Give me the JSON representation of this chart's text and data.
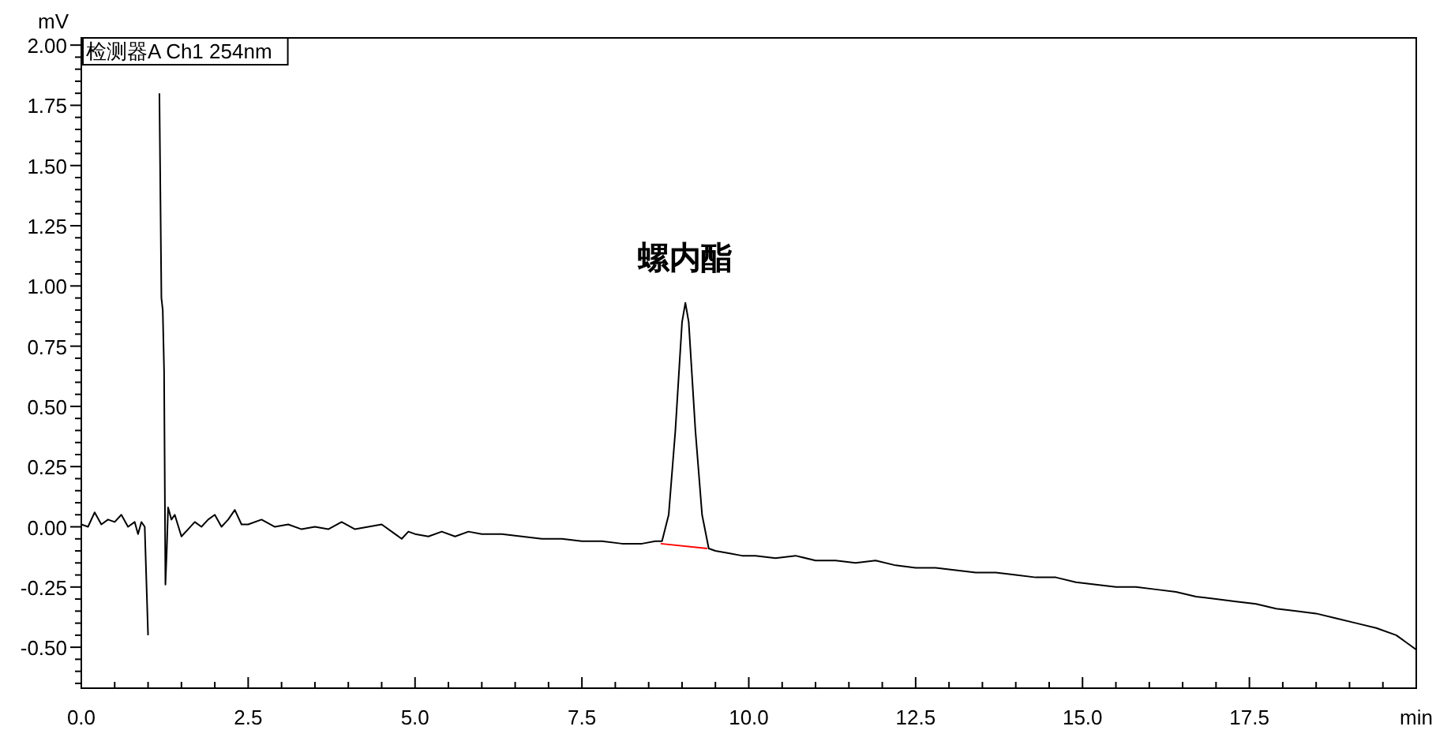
{
  "chart_data": {
    "type": "line",
    "xlabel": "min",
    "ylabel": "mV",
    "legend": "top left",
    "xlim": [
      0,
      20
    ],
    "ylim": [
      -0.67,
      2.03
    ],
    "xticks": [
      {
        "value": 0,
        "label": "0.0"
      },
      {
        "value": 2.5,
        "label": "2.5"
      },
      {
        "value": 5,
        "label": "5.0"
      },
      {
        "value": 7.5,
        "label": "7.5"
      },
      {
        "value": 10,
        "label": "10.0"
      },
      {
        "value": 12.5,
        "label": "12.5"
      },
      {
        "value": 15,
        "label": "15.0"
      },
      {
        "value": 17.5,
        "label": "17.5"
      }
    ],
    "yticks": [
      {
        "value": -0.5,
        "label": "-0.50"
      },
      {
        "value": -0.25,
        "label": "-0.25"
      },
      {
        "value": 0,
        "label": "0.00"
      },
      {
        "value": 0.25,
        "label": "0.25"
      },
      {
        "value": 0.5,
        "label": "0.50"
      },
      {
        "value": 0.75,
        "label": "0.75"
      },
      {
        "value": 1,
        "label": "1.00"
      },
      {
        "value": 1.25,
        "label": "1.25"
      },
      {
        "value": 1.5,
        "label": "1.50"
      },
      {
        "value": 1.75,
        "label": "1.75"
      },
      {
        "value": 2,
        "label": "2.00"
      }
    ],
    "annotations": [
      {
        "text": "螺内酯",
        "x": 9.05,
        "y": 0.93
      }
    ],
    "series": [
      {
        "name": "检测器A Ch1 254nm",
        "color": "#000000",
        "x": [
          0,
          0.1,
          0.2,
          0.3,
          0.4,
          0.5,
          0.6,
          0.7,
          0.8,
          0.85,
          0.9,
          0.95,
          1.0,
          1.05,
          1.07,
          1.08,
          1.12,
          1.13,
          1.15,
          1.17,
          1.2,
          1.22,
          1.24,
          1.26,
          1.28,
          1.3,
          1.35,
          1.4,
          1.5,
          1.6,
          1.7,
          1.8,
          1.9,
          2.0,
          2.1,
          2.2,
          2.3,
          2.4,
          2.5,
          2.7,
          2.9,
          3.1,
          3.3,
          3.5,
          3.7,
          3.9,
          4.1,
          4.3,
          4.5,
          4.7,
          4.8,
          4.9,
          5.0,
          5.2,
          5.4,
          5.6,
          5.8,
          6.0,
          6.3,
          6.6,
          6.9,
          7.2,
          7.5,
          7.8,
          8.1,
          8.4,
          8.6,
          8.7,
          8.8,
          8.9,
          9.0,
          9.05,
          9.1,
          9.2,
          9.3,
          9.4,
          9.5,
          9.7,
          9.9,
          10.1,
          10.4,
          10.7,
          11.0,
          11.3,
          11.6,
          11.9,
          12.2,
          12.5,
          12.8,
          13.1,
          13.4,
          13.7,
          14.0,
          14.3,
          14.6,
          14.9,
          15.2,
          15.5,
          15.8,
          16.1,
          16.4,
          16.7,
          17.0,
          17.3,
          17.6,
          17.9,
          18.2,
          18.5,
          18.8,
          19.1,
          19.4,
          19.7,
          20.0
        ],
        "values": [
          0.01,
          0.0,
          0.06,
          0.01,
          0.03,
          0.02,
          0.05,
          0.0,
          0.02,
          -0.03,
          0.02,
          0.0,
          -0.45,
          null,
          null,
          null,
          null,
          1.5,
          null,
          1.8,
          0.95,
          0.9,
          0.65,
          -0.24,
          -0.1,
          0.08,
          0.03,
          0.05,
          -0.04,
          -0.01,
          0.02,
          0.0,
          0.03,
          0.05,
          0.0,
          0.03,
          0.07,
          0.01,
          0.01,
          0.03,
          0.0,
          0.01,
          -0.01,
          0.0,
          -0.01,
          0.02,
          -0.01,
          0.0,
          0.01,
          -0.03,
          -0.05,
          -0.02,
          -0.03,
          -0.04,
          -0.02,
          -0.04,
          -0.02,
          -0.03,
          -0.03,
          -0.04,
          -0.05,
          -0.05,
          -0.06,
          -0.06,
          -0.07,
          -0.07,
          -0.06,
          -0.06,
          0.05,
          0.4,
          0.85,
          0.93,
          0.85,
          0.4,
          0.05,
          -0.09,
          -0.1,
          -0.11,
          -0.12,
          -0.12,
          -0.13,
          -0.12,
          -0.14,
          -0.14,
          -0.15,
          -0.14,
          -0.16,
          -0.17,
          -0.17,
          -0.18,
          -0.19,
          -0.19,
          -0.2,
          -0.21,
          -0.21,
          -0.23,
          -0.24,
          -0.25,
          -0.25,
          -0.26,
          -0.27,
          -0.29,
          -0.3,
          -0.31,
          -0.32,
          -0.34,
          -0.35,
          -0.36,
          -0.38,
          -0.4,
          -0.42,
          -0.45,
          -0.51
        ]
      },
      {
        "color": "#ff0000",
        "x": [
          8.68,
          9.38
        ],
        "values": [
          -0.07,
          -0.09
        ]
      }
    ]
  }
}
